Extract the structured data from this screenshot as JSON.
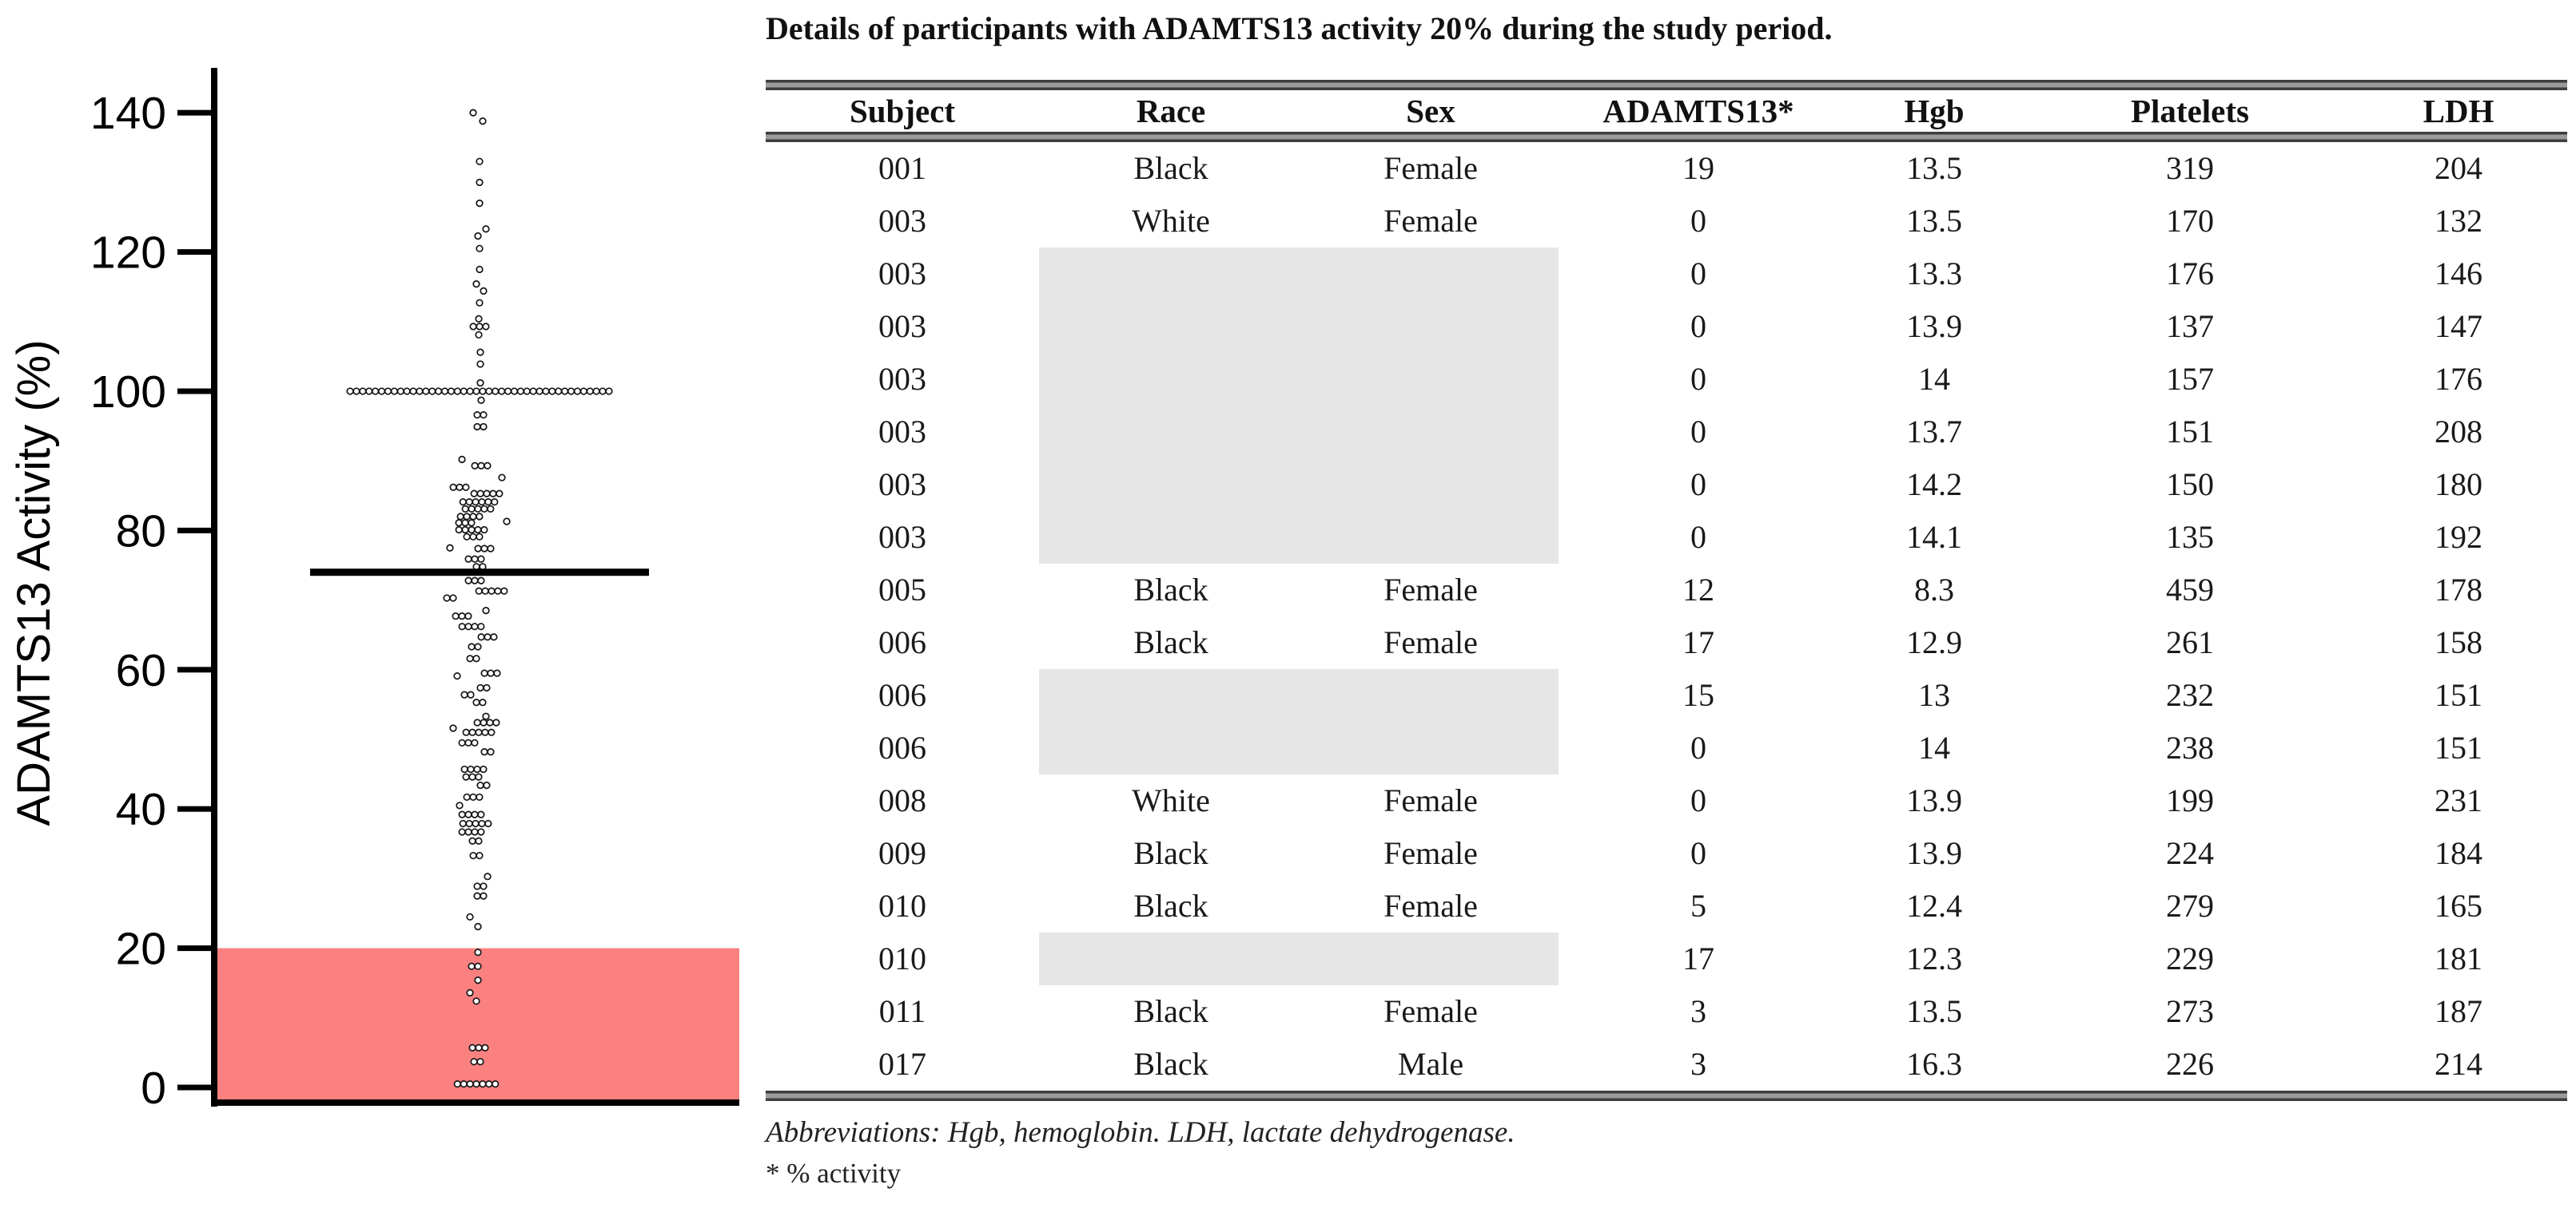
{
  "figure": {
    "kind": "scientific-figure",
    "panels": [
      "adamts13-activity-dot-plot",
      "participants-table"
    ]
  },
  "chart_data": {
    "type": "scatter",
    "subtype": "beeswarm-dot-plot",
    "title": "",
    "xlabel": "",
    "ylabel": "ADAMTS13 Activity (%)",
    "yticks": [
      0,
      20,
      40,
      60,
      80,
      100,
      120,
      140
    ],
    "ylim": [
      -2,
      150
    ],
    "grid": false,
    "legend": "none",
    "mean_line_value": 74,
    "red_zone": {
      "from": 0,
      "to": 20,
      "color": "#fb8181",
      "meaning": "ADAMTS13 activity 20% threshold band"
    },
    "dot_style": {
      "fill": "#ffffff",
      "stroke": "#161616"
    },
    "points_format": [
      "value",
      "count_in_row",
      "x_offset_px"
    ],
    "points": [
      [
        140,
        1,
        -8
      ],
      [
        138.8,
        1,
        4
      ],
      [
        133,
        1,
        0
      ],
      [
        130,
        1,
        0
      ],
      [
        127,
        1,
        0
      ],
      [
        123.3,
        1,
        8
      ],
      [
        122.3,
        1,
        -2
      ],
      [
        120.5,
        1,
        0
      ],
      [
        117.5,
        1,
        0
      ],
      [
        115.4,
        1,
        -4
      ],
      [
        114.4,
        1,
        5
      ],
      [
        112.7,
        1,
        0
      ],
      [
        110.4,
        1,
        -1
      ],
      [
        109.3,
        3,
        0
      ],
      [
        108.1,
        1,
        -1
      ],
      [
        105.6,
        1,
        1
      ],
      [
        103.9,
        1,
        1
      ],
      [
        101.2,
        1,
        1
      ],
      [
        100,
        42,
        0
      ],
      [
        98.7,
        1,
        2
      ],
      [
        96.6,
        2,
        1
      ],
      [
        94.9,
        2,
        1
      ],
      [
        90.2,
        1,
        -22
      ],
      [
        89.3,
        3,
        2
      ],
      [
        87.6,
        1,
        28
      ],
      [
        86.2,
        3,
        -25
      ],
      [
        85.3,
        5,
        9
      ],
      [
        84.1,
        6,
        -1
      ],
      [
        83.1,
        5,
        -2
      ],
      [
        82.0,
        4,
        -12
      ],
      [
        81.3,
        1,
        34
      ],
      [
        81.1,
        3,
        -18
      ],
      [
        80.1,
        5,
        -10
      ],
      [
        79.1,
        3,
        -8
      ],
      [
        77.5,
        1,
        -37
      ],
      [
        77.4,
        3,
        6
      ],
      [
        75.9,
        3,
        -6
      ],
      [
        74.8,
        2,
        0
      ],
      [
        72.8,
        3,
        -6
      ],
      [
        71.3,
        5,
        15
      ],
      [
        70.3,
        2,
        -37
      ],
      [
        68.5,
        1,
        8
      ],
      [
        67.7,
        3,
        -22
      ],
      [
        66.2,
        4,
        -10
      ],
      [
        64.7,
        3,
        10
      ],
      [
        63.3,
        2,
        -6
      ],
      [
        61.6,
        2,
        -8
      ],
      [
        59.5,
        3,
        14
      ],
      [
        59.1,
        1,
        -28
      ],
      [
        57.4,
        2,
        5
      ],
      [
        56.4,
        2,
        -15
      ],
      [
        55.3,
        2,
        0
      ],
      [
        53.3,
        1,
        8
      ],
      [
        52.4,
        4,
        9
      ],
      [
        51.6,
        1,
        -33
      ],
      [
        51.0,
        5,
        -1
      ],
      [
        49.5,
        3,
        -14
      ],
      [
        48.2,
        2,
        10
      ],
      [
        45.7,
        4,
        -7
      ],
      [
        44.6,
        3,
        -9
      ],
      [
        43.4,
        2,
        5
      ],
      [
        41.7,
        3,
        -8
      ],
      [
        40.5,
        1,
        -25
      ],
      [
        39.2,
        4,
        -10
      ],
      [
        37.9,
        5,
        -5
      ],
      [
        36.7,
        4,
        -10
      ],
      [
        35.4,
        2,
        -5
      ],
      [
        33.3,
        2,
        -4
      ],
      [
        30.3,
        1,
        10
      ],
      [
        28.9,
        2,
        1
      ],
      [
        27.5,
        2,
        1
      ],
      [
        24.5,
        1,
        -12
      ],
      [
        23.1,
        1,
        -2
      ],
      [
        19.4,
        1,
        -2
      ],
      [
        17.4,
        2,
        -6
      ],
      [
        15.4,
        1,
        -2
      ],
      [
        13.6,
        1,
        -12
      ],
      [
        12.4,
        1,
        -4
      ],
      [
        5.7,
        3,
        -1
      ],
      [
        3.7,
        2,
        -3
      ],
      [
        0.5,
        7,
        -4
      ]
    ]
  },
  "table": {
    "title": "Details of participants with ADAMTS13 activity 20% during the study period.",
    "columns": [
      "Subject",
      "Race",
      "Sex",
      "ADAMTS13*",
      "Hgb",
      "Platelets",
      "LDH"
    ],
    "rows": [
      [
        "001",
        "Black",
        "Female",
        "19",
        "13.5",
        "319",
        "204"
      ],
      [
        "003",
        "White",
        "Female",
        "0",
        "13.5",
        "170",
        "132"
      ],
      [
        "003",
        "",
        "",
        "0",
        "13.3",
        "176",
        "146"
      ],
      [
        "003",
        "",
        "",
        "0",
        "13.9",
        "137",
        "147"
      ],
      [
        "003",
        "",
        "",
        "0",
        "14",
        "157",
        "176"
      ],
      [
        "003",
        "",
        "",
        "0",
        "13.7",
        "151",
        "208"
      ],
      [
        "003",
        "",
        "",
        "0",
        "14.2",
        "150",
        "180"
      ],
      [
        "003",
        "",
        "",
        "0",
        "14.1",
        "135",
        "192"
      ],
      [
        "005",
        "Black",
        "Female",
        "12",
        "8.3",
        "459",
        "178"
      ],
      [
        "006",
        "Black",
        "Female",
        "17",
        "12.9",
        "261",
        "158"
      ],
      [
        "006",
        "",
        "",
        "15",
        "13",
        "232",
        "151"
      ],
      [
        "006",
        "",
        "",
        "0",
        "14",
        "238",
        "151"
      ],
      [
        "008",
        "White",
        "Female",
        "0",
        "13.9",
        "199",
        "231"
      ],
      [
        "009",
        "Black",
        "Female",
        "0",
        "13.9",
        "224",
        "184"
      ],
      [
        "010",
        "Black",
        "Female",
        "5",
        "12.4",
        "279",
        "165"
      ],
      [
        "010",
        "",
        "",
        "17",
        "12.3",
        "229",
        "181"
      ],
      [
        "011",
        "Black",
        "Female",
        "3",
        "13.5",
        "273",
        "187"
      ],
      [
        "017",
        "Black",
        "Male",
        "3",
        "16.3",
        "226",
        "214"
      ]
    ],
    "merged_cell_color": "#e6e6e6",
    "footnotes": [
      "Abbreviations: Hgb, hemoglobin. LDH, lactate dehydrogenase.",
      "* % activity"
    ]
  }
}
